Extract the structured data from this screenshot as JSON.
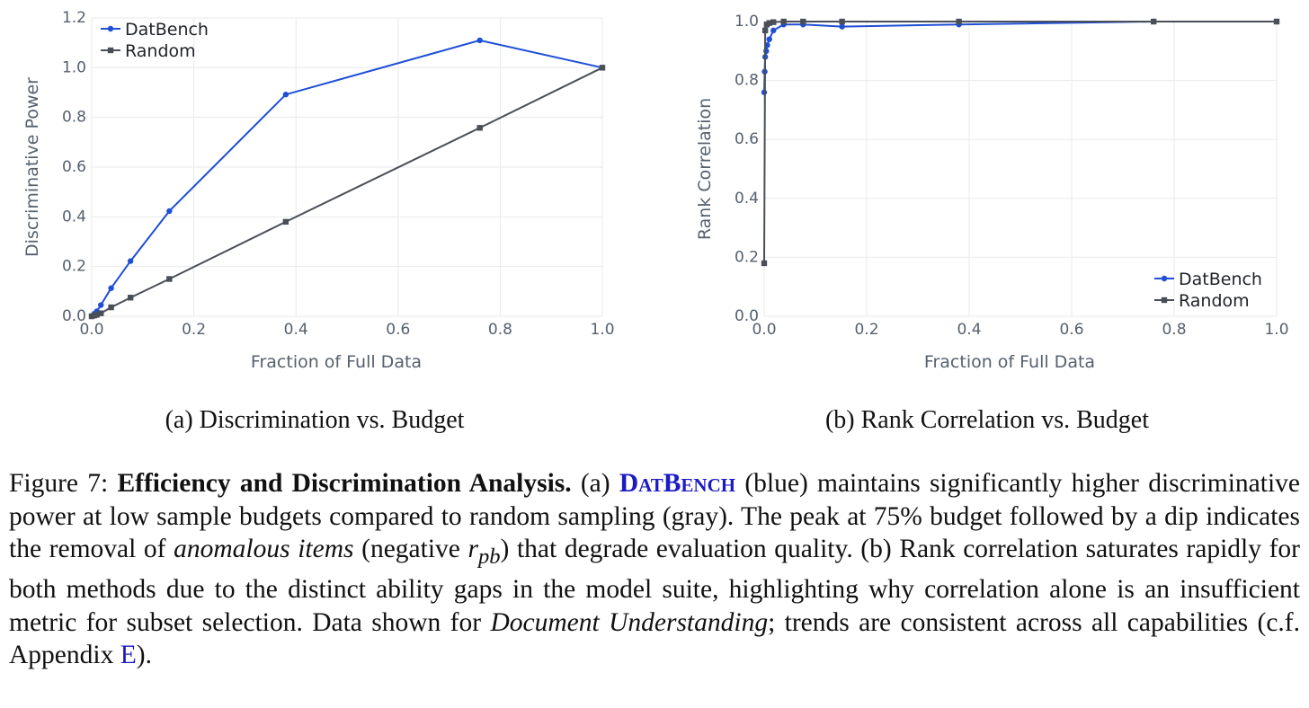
{
  "figure": {
    "charts": [
      {
        "key": "a",
        "subcaption": "(a) Discrimination vs. Budget"
      },
      {
        "key": "b",
        "subcaption": "(b) Rank Correlation vs. Budget"
      }
    ],
    "caption": {
      "prefix": "Figure 7: ",
      "bold_title": "Efficiency and Discrimination Analysis.",
      "part1": " (a) ",
      "brand": "DatBench",
      "part2": " (blue) maintains significantly higher discriminative power at low sample budgets compared to random sampling (gray). The peak at  75% budget followed by a dip indicates the removal of ",
      "italic1": "anomalous items",
      "part3": " (negative ",
      "math_r": "r",
      "math_sub": "pb",
      "part4": ") that degrade evaluation quality. (b) Rank correlation saturates rapidly for both methods due to the distinct ability gaps in the model suite, highlighting why correlation alone is an insufficient metric for subset selection. Data shown for ",
      "italic2": "Document Understanding",
      "part5": "; trends are consistent across all capabilities (c.f. Appendix ",
      "appendix_ref": "E",
      "part6": ")."
    },
    "colors": {
      "datbench": "#1f4fd6",
      "random": "#4a4f57",
      "grid": "#e8eaed"
    }
  },
  "chart_data": [
    {
      "type": "line",
      "title": "",
      "xlabel": "Fraction of Full Data",
      "ylabel": "Discriminative Power",
      "xlim": [
        0,
        1.0
      ],
      "ylim": [
        0,
        1.2
      ],
      "xticks": [
        "0.0",
        "0.2",
        "0.4",
        "0.6",
        "0.8",
        "1.0"
      ],
      "yticks": [
        "0.0",
        "0.2",
        "0.4",
        "0.6",
        "0.8",
        "1.0",
        "1.2"
      ],
      "legend_position": "top-left",
      "grid": true,
      "series": [
        {
          "name": "DatBench",
          "marker": "circle",
          "x": [
            0.0,
            0.005,
            0.01,
            0.018,
            0.038,
            0.076,
            0.152,
            0.38,
            0.76,
            1.0
          ],
          "y": [
            0.0,
            0.01,
            0.02,
            0.045,
            0.113,
            0.222,
            0.423,
            0.892,
            1.11,
            1.0
          ]
        },
        {
          "name": "Random",
          "marker": "square",
          "x": [
            0.0,
            0.005,
            0.01,
            0.018,
            0.038,
            0.076,
            0.152,
            0.38,
            0.76,
            1.0
          ],
          "y": [
            0.0,
            0.003,
            0.006,
            0.012,
            0.036,
            0.075,
            0.15,
            0.38,
            0.758,
            1.0
          ]
        }
      ]
    },
    {
      "type": "line",
      "title": "",
      "xlabel": "Fraction of Full Data",
      "ylabel": "Rank Correlation",
      "xlim": [
        0,
        1.0
      ],
      "ylim": [
        0,
        1.0
      ],
      "xticks": [
        "0.0",
        "0.2",
        "0.4",
        "0.6",
        "0.8",
        "1.0"
      ],
      "yticks": [
        "0.0",
        "0.2",
        "0.4",
        "0.6",
        "0.8",
        "1.0"
      ],
      "legend_position": "bottom-right",
      "grid": true,
      "series": [
        {
          "name": "DatBench",
          "marker": "circle",
          "x": [
            0.0,
            0.001,
            0.002,
            0.004,
            0.006,
            0.01,
            0.018,
            0.038,
            0.076,
            0.152,
            0.38,
            0.76,
            1.0
          ],
          "y": [
            0.76,
            0.83,
            0.88,
            0.9,
            0.92,
            0.94,
            0.97,
            0.99,
            0.99,
            0.983,
            0.99,
            1.0,
            1.0
          ]
        },
        {
          "name": "Random",
          "marker": "square",
          "x": [
            0.0,
            0.002,
            0.005,
            0.01,
            0.018,
            0.038,
            0.076,
            0.152,
            0.38,
            0.76,
            1.0
          ],
          "y": [
            0.18,
            0.97,
            0.99,
            0.995,
            0.998,
            1.0,
            1.0,
            1.0,
            1.0,
            1.0,
            1.0
          ]
        }
      ]
    }
  ]
}
